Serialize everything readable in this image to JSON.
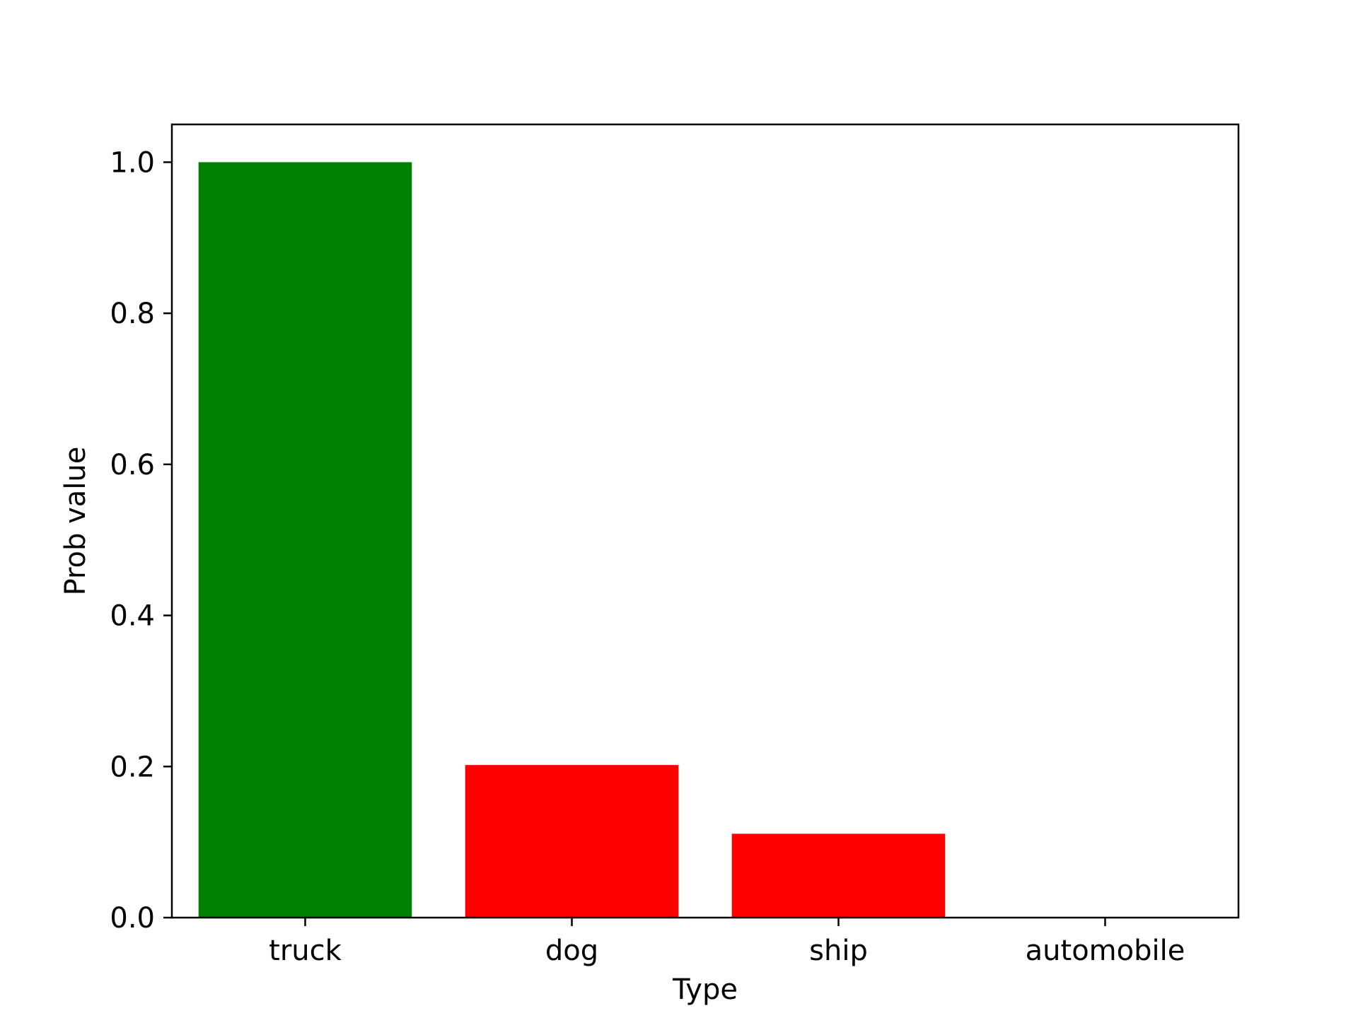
{
  "chart_data": {
    "type": "bar",
    "categories": [
      "truck",
      "dog",
      "ship",
      "automobile"
    ],
    "values": [
      1.0,
      0.202,
      0.111,
      0.0
    ],
    "bar_colors": [
      "#008000",
      "#ff0000",
      "#ff0000",
      "#ff0000"
    ],
    "xlabel": "Type",
    "ylabel": "Prob value",
    "ylim": [
      0,
      1.05
    ],
    "yticks": [
      0.0,
      0.2,
      0.4,
      0.6,
      0.8,
      1.0
    ],
    "ytick_labels": [
      "0.0",
      "0.2",
      "0.4",
      "0.6",
      "0.8",
      "1.0"
    ],
    "grid": false,
    "legend": "none"
  }
}
